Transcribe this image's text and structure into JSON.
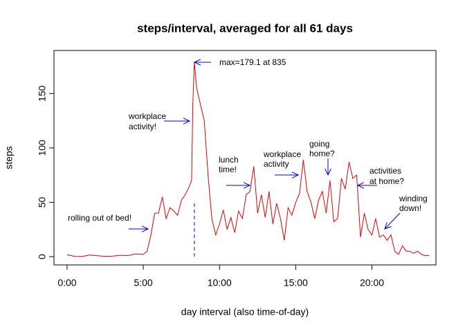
{
  "chart_data": {
    "type": "line",
    "title": "steps/interval, averaged for all 61 days",
    "xlabel": "day interval (also time-of-day)",
    "ylabel": "steps",
    "x": [
      0,
      0.5,
      1,
      1.5,
      2,
      2.5,
      3,
      3.5,
      4,
      4.5,
      5,
      5.25,
      5.5,
      5.75,
      6,
      6.25,
      6.5,
      6.75,
      7,
      7.25,
      7.5,
      7.75,
      8,
      8.17,
      8.25,
      8.35,
      8.5,
      8.75,
      9,
      9.25,
      9.5,
      9.75,
      10,
      10.25,
      10.5,
      10.75,
      11,
      11.25,
      11.5,
      11.75,
      12,
      12.25,
      12.5,
      12.75,
      13,
      13.25,
      13.5,
      13.75,
      14,
      14.25,
      14.5,
      14.75,
      15,
      15.25,
      15.5,
      15.75,
      16,
      16.25,
      16.5,
      16.75,
      17,
      17.25,
      17.5,
      17.75,
      18,
      18.25,
      18.5,
      18.75,
      19,
      19.25,
      19.5,
      19.75,
      20,
      20.25,
      20.5,
      20.75,
      21,
      21.25,
      21.5,
      21.75,
      22,
      22.25,
      22.5,
      22.75,
      23,
      23.25,
      23.5,
      23.75
    ],
    "values": [
      1.7,
      0.3,
      0.2,
      1.5,
      0.8,
      0.3,
      0.5,
      1.2,
      1,
      2.5,
      2,
      5,
      20,
      40,
      40,
      55,
      35,
      45,
      42,
      38,
      52,
      57,
      64,
      70,
      140,
      179.1,
      155,
      140,
      125,
      75,
      35,
      20,
      30,
      43,
      25,
      36,
      22,
      42,
      35,
      57,
      60,
      83,
      40,
      57,
      36,
      60,
      30,
      49,
      35,
      15,
      45,
      38,
      50,
      58,
      89,
      60,
      50,
      35,
      52,
      60,
      40,
      70,
      32,
      35,
      72,
      62,
      87,
      72,
      75,
      18,
      40,
      25,
      20,
      35,
      18,
      20,
      15,
      20,
      5,
      2,
      10,
      5,
      5,
      3,
      5,
      2,
      1,
      1
    ],
    "color": "#dd0000",
    "xlim": [
      -0.86,
      24.2
    ],
    "ylim": [
      -7.6,
      189.6
    ],
    "xticks": [
      {
        "value": 0,
        "label": "0:00"
      },
      {
        "value": 5,
        "label": "5:00"
      },
      {
        "value": 10,
        "label": "10:00"
      },
      {
        "value": 15,
        "label": "15:00"
      },
      {
        "value": 20,
        "label": "20:00"
      }
    ],
    "yticks": [
      0,
      50,
      100,
      150
    ],
    "annotations": [
      [
        "max=179.1 at 835"
      ],
      [
        "workplace",
        "activity!"
      ],
      [
        "rolling out of bed!"
      ],
      [
        "lunch",
        "time!"
      ],
      [
        "workplace",
        "activity"
      ],
      [
        "going",
        "home?"
      ],
      [
        "activities",
        "at home?"
      ],
      [
        "winding",
        "down!"
      ]
    ],
    "annotation_color": "#0000cc"
  }
}
